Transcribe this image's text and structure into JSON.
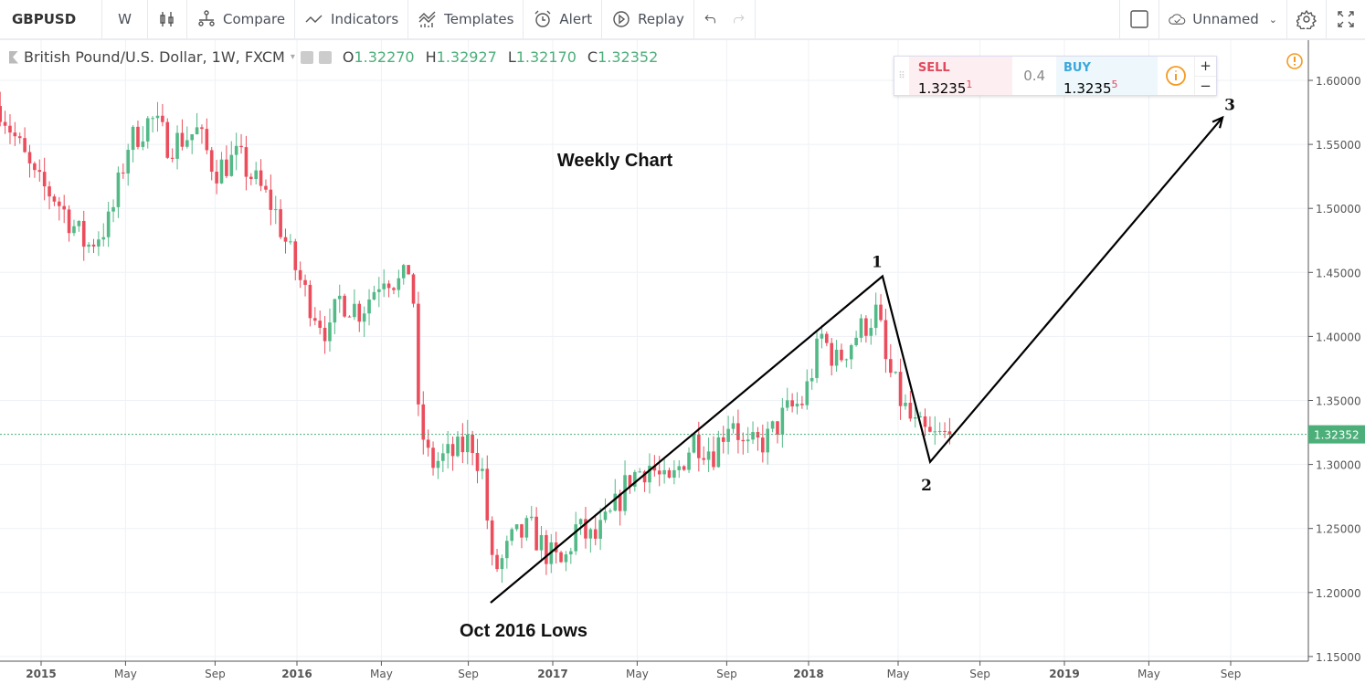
{
  "toolbar": {
    "symbol": "GBPUSD",
    "interval": "W",
    "compare": "Compare",
    "indicators": "Indicators",
    "templates": "Templates",
    "alert": "Alert",
    "replay": "Replay",
    "layout_name": "Unnamed"
  },
  "legend": {
    "title": "British Pound/U.S. Dollar, 1W, FXCM",
    "o_label": "O",
    "o": "1.32270",
    "h_label": "H",
    "h": "1.32927",
    "l_label": "L",
    "l": "1.32170",
    "c_label": "C",
    "c": "1.32352"
  },
  "trade": {
    "sell_label": "SELL",
    "sell_price": "1.3235",
    "sell_sup": "1",
    "spread": "0.4",
    "buy_label": "BUY",
    "buy_price": "1.3235",
    "buy_sup": "5",
    "plus": "+",
    "minus": "−"
  },
  "colors": {
    "up": "#53b987",
    "down": "#eb4d5c",
    "last": "#4caf7a"
  },
  "chart_data": {
    "type": "candlestick",
    "price_ticks": [
      "1.60000",
      "1.55000",
      "1.50000",
      "1.45000",
      "1.40000",
      "1.35000",
      "1.30000",
      "1.25000",
      "1.20000",
      "1.15000"
    ],
    "time_ticks": [
      {
        "label": "2015",
        "t": 2015.0
      },
      {
        "label": "May",
        "t": 2015.33
      },
      {
        "label": "Sep",
        "t": 2015.68
      },
      {
        "label": "2016",
        "t": 2016.0
      },
      {
        "label": "May",
        "t": 2016.33
      },
      {
        "label": "Sep",
        "t": 2016.67
      },
      {
        "label": "2017",
        "t": 2017.0
      },
      {
        "label": "May",
        "t": 2017.33
      },
      {
        "label": "Sep",
        "t": 2017.68
      },
      {
        "label": "2018",
        "t": 2018.0
      },
      {
        "label": "May",
        "t": 2018.35
      },
      {
        "label": "Sep",
        "t": 2018.67
      },
      {
        "label": "2019",
        "t": 2019.0
      },
      {
        "label": "May",
        "t": 2019.33
      },
      {
        "label": "Sep",
        "t": 2019.65
      }
    ],
    "last_price": "1.32352",
    "close_path": [
      [
        2014.84,
        1.58
      ],
      [
        2014.98,
        1.52
      ],
      [
        2015.05,
        1.51
      ],
      [
        2015.18,
        1.47
      ],
      [
        2015.27,
        1.49
      ],
      [
        2015.34,
        1.55
      ],
      [
        2015.43,
        1.57
      ],
      [
        2015.5,
        1.55
      ],
      [
        2015.61,
        1.56
      ],
      [
        2015.68,
        1.53
      ],
      [
        2015.77,
        1.54
      ],
      [
        2015.84,
        1.52
      ],
      [
        2015.91,
        1.5
      ],
      [
        2015.98,
        1.46
      ],
      [
        2016.04,
        1.43
      ],
      [
        2016.13,
        1.4
      ],
      [
        2016.16,
        1.43
      ],
      [
        2016.25,
        1.42
      ],
      [
        2016.34,
        1.45
      ],
      [
        2016.41,
        1.44
      ],
      [
        2016.45,
        1.46
      ],
      [
        2016.47,
        1.34
      ],
      [
        2016.52,
        1.3
      ],
      [
        2016.63,
        1.31
      ],
      [
        2016.68,
        1.32
      ],
      [
        2016.73,
        1.29
      ],
      [
        2016.76,
        1.22
      ],
      [
        2016.79,
        1.22
      ],
      [
        2016.84,
        1.24
      ],
      [
        2016.91,
        1.25
      ],
      [
        2016.98,
        1.23
      ],
      [
        2017.04,
        1.22
      ],
      [
        2017.09,
        1.25
      ],
      [
        2017.16,
        1.24
      ],
      [
        2017.23,
        1.26
      ],
      [
        2017.3,
        1.29
      ],
      [
        2017.38,
        1.3
      ],
      [
        2017.45,
        1.28
      ],
      [
        2017.55,
        1.32
      ],
      [
        2017.63,
        1.31
      ],
      [
        2017.7,
        1.34
      ],
      [
        2017.75,
        1.31
      ],
      [
        2017.84,
        1.32
      ],
      [
        2017.91,
        1.34
      ],
      [
        2017.98,
        1.35
      ],
      [
        2018.05,
        1.4
      ],
      [
        2018.11,
        1.38
      ],
      [
        2018.18,
        1.4
      ],
      [
        2018.27,
        1.42
      ],
      [
        2018.3,
        1.38
      ],
      [
        2018.36,
        1.35
      ],
      [
        2018.41,
        1.33
      ],
      [
        2018.48,
        1.32
      ],
      [
        2018.55,
        1.3235
      ]
    ],
    "ylim": [
      1.15,
      1.6
    ],
    "annotations": {
      "title": "Weekly Chart",
      "low_label": "Oct 2016 Lows",
      "p1": "1",
      "p2": "2",
      "p3": "3",
      "path": [
        [
          2016.757,
          1.192
        ],
        [
          2018.289,
          1.447
        ],
        [
          2018.475,
          1.302
        ],
        [
          2019.618,
          1.571
        ]
      ]
    }
  }
}
